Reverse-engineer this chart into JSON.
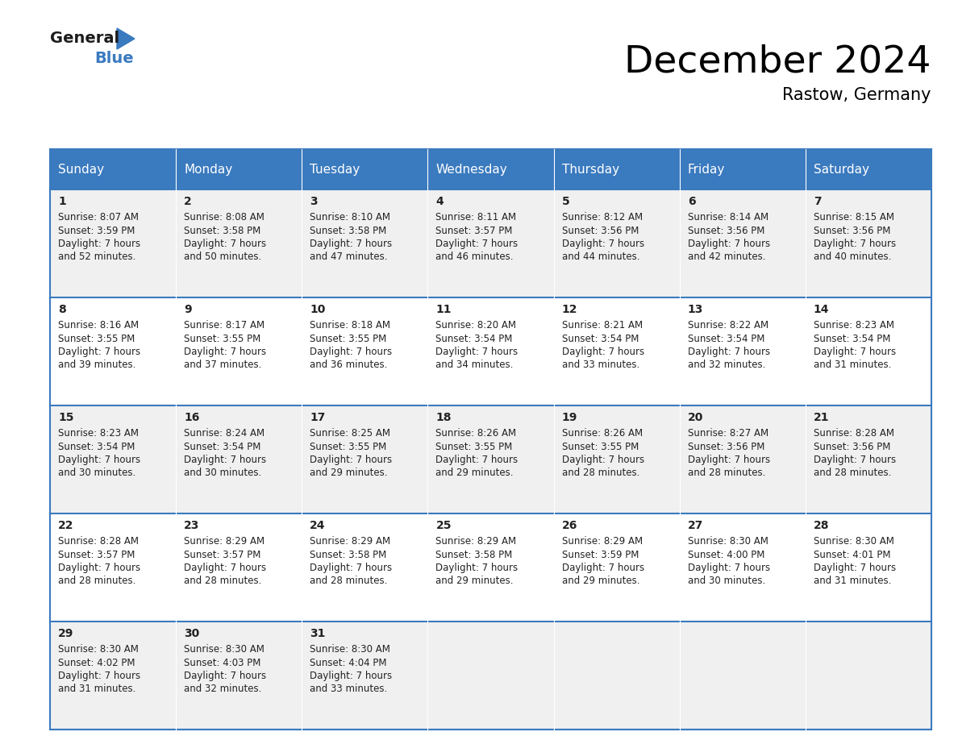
{
  "title": "December 2024",
  "subtitle": "Rastow, Germany",
  "header_bg": "#3a7abf",
  "header_text": "#ffffff",
  "cell_bg_odd": "#f0f0f0",
  "cell_bg_even": "#ffffff",
  "border_color": "#3a7abf",
  "text_color": "#222222",
  "days_of_week": [
    "Sunday",
    "Monday",
    "Tuesday",
    "Wednesday",
    "Thursday",
    "Friday",
    "Saturday"
  ],
  "weeks": [
    [
      {
        "day": 1,
        "sunrise": "8:07 AM",
        "sunset": "3:59 PM",
        "daylight": "7 hours\nand 52 minutes."
      },
      {
        "day": 2,
        "sunrise": "8:08 AM",
        "sunset": "3:58 PM",
        "daylight": "7 hours\nand 50 minutes."
      },
      {
        "day": 3,
        "sunrise": "8:10 AM",
        "sunset": "3:58 PM",
        "daylight": "7 hours\nand 47 minutes."
      },
      {
        "day": 4,
        "sunrise": "8:11 AM",
        "sunset": "3:57 PM",
        "daylight": "7 hours\nand 46 minutes."
      },
      {
        "day": 5,
        "sunrise": "8:12 AM",
        "sunset": "3:56 PM",
        "daylight": "7 hours\nand 44 minutes."
      },
      {
        "day": 6,
        "sunrise": "8:14 AM",
        "sunset": "3:56 PM",
        "daylight": "7 hours\nand 42 minutes."
      },
      {
        "day": 7,
        "sunrise": "8:15 AM",
        "sunset": "3:56 PM",
        "daylight": "7 hours\nand 40 minutes."
      }
    ],
    [
      {
        "day": 8,
        "sunrise": "8:16 AM",
        "sunset": "3:55 PM",
        "daylight": "7 hours\nand 39 minutes."
      },
      {
        "day": 9,
        "sunrise": "8:17 AM",
        "sunset": "3:55 PM",
        "daylight": "7 hours\nand 37 minutes."
      },
      {
        "day": 10,
        "sunrise": "8:18 AM",
        "sunset": "3:55 PM",
        "daylight": "7 hours\nand 36 minutes."
      },
      {
        "day": 11,
        "sunrise": "8:20 AM",
        "sunset": "3:54 PM",
        "daylight": "7 hours\nand 34 minutes."
      },
      {
        "day": 12,
        "sunrise": "8:21 AM",
        "sunset": "3:54 PM",
        "daylight": "7 hours\nand 33 minutes."
      },
      {
        "day": 13,
        "sunrise": "8:22 AM",
        "sunset": "3:54 PM",
        "daylight": "7 hours\nand 32 minutes."
      },
      {
        "day": 14,
        "sunrise": "8:23 AM",
        "sunset": "3:54 PM",
        "daylight": "7 hours\nand 31 minutes."
      }
    ],
    [
      {
        "day": 15,
        "sunrise": "8:23 AM",
        "sunset": "3:54 PM",
        "daylight": "7 hours\nand 30 minutes."
      },
      {
        "day": 16,
        "sunrise": "8:24 AM",
        "sunset": "3:54 PM",
        "daylight": "7 hours\nand 30 minutes."
      },
      {
        "day": 17,
        "sunrise": "8:25 AM",
        "sunset": "3:55 PM",
        "daylight": "7 hours\nand 29 minutes."
      },
      {
        "day": 18,
        "sunrise": "8:26 AM",
        "sunset": "3:55 PM",
        "daylight": "7 hours\nand 29 minutes."
      },
      {
        "day": 19,
        "sunrise": "8:26 AM",
        "sunset": "3:55 PM",
        "daylight": "7 hours\nand 28 minutes."
      },
      {
        "day": 20,
        "sunrise": "8:27 AM",
        "sunset": "3:56 PM",
        "daylight": "7 hours\nand 28 minutes."
      },
      {
        "day": 21,
        "sunrise": "8:28 AM",
        "sunset": "3:56 PM",
        "daylight": "7 hours\nand 28 minutes."
      }
    ],
    [
      {
        "day": 22,
        "sunrise": "8:28 AM",
        "sunset": "3:57 PM",
        "daylight": "7 hours\nand 28 minutes."
      },
      {
        "day": 23,
        "sunrise": "8:29 AM",
        "sunset": "3:57 PM",
        "daylight": "7 hours\nand 28 minutes."
      },
      {
        "day": 24,
        "sunrise": "8:29 AM",
        "sunset": "3:58 PM",
        "daylight": "7 hours\nand 28 minutes."
      },
      {
        "day": 25,
        "sunrise": "8:29 AM",
        "sunset": "3:58 PM",
        "daylight": "7 hours\nand 29 minutes."
      },
      {
        "day": 26,
        "sunrise": "8:29 AM",
        "sunset": "3:59 PM",
        "daylight": "7 hours\nand 29 minutes."
      },
      {
        "day": 27,
        "sunrise": "8:30 AM",
        "sunset": "4:00 PM",
        "daylight": "7 hours\nand 30 minutes."
      },
      {
        "day": 28,
        "sunrise": "8:30 AM",
        "sunset": "4:01 PM",
        "daylight": "7 hours\nand 31 minutes."
      }
    ],
    [
      {
        "day": 29,
        "sunrise": "8:30 AM",
        "sunset": "4:02 PM",
        "daylight": "7 hours\nand 31 minutes."
      },
      {
        "day": 30,
        "sunrise": "8:30 AM",
        "sunset": "4:03 PM",
        "daylight": "7 hours\nand 32 minutes."
      },
      {
        "day": 31,
        "sunrise": "8:30 AM",
        "sunset": "4:04 PM",
        "daylight": "7 hours\nand 33 minutes."
      },
      null,
      null,
      null,
      null
    ]
  ]
}
